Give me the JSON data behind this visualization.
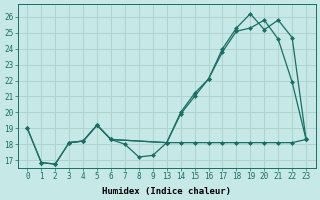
{
  "background_color": "#c6e8e6",
  "grid_color": "#afd4d0",
  "line_color": "#1a6e62",
  "xlabel": "Humidex (Indice chaleur)",
  "ylim": [
    16.5,
    26.8
  ],
  "yticks": [
    17,
    18,
    19,
    20,
    21,
    22,
    23,
    24,
    25,
    26
  ],
  "xtick_labels": [
    "0",
    "1",
    "2",
    "3",
    "4",
    "5",
    "6",
    "7",
    "8",
    "9",
    "13",
    "14",
    "15",
    "16",
    "17",
    "18",
    "19",
    "20",
    "21",
    "22",
    "23"
  ],
  "line1_pos": [
    0,
    1,
    2,
    3,
    4,
    5,
    6,
    7,
    8,
    9,
    10,
    11,
    12,
    13,
    14,
    15,
    16,
    17,
    18,
    19,
    20
  ],
  "line1_y": [
    19.0,
    16.85,
    16.75,
    18.1,
    18.2,
    19.2,
    18.3,
    18.0,
    17.2,
    17.3,
    18.1,
    20.0,
    21.2,
    22.1,
    24.0,
    25.3,
    26.2,
    25.2,
    25.8,
    24.7,
    18.3
  ],
  "line2_pos": [
    0,
    1,
    2,
    3,
    4,
    5,
    6,
    10,
    11,
    12,
    13,
    14,
    15,
    16,
    17,
    18,
    19,
    20
  ],
  "line2_y": [
    19.0,
    16.85,
    16.75,
    18.1,
    18.2,
    19.2,
    18.3,
    18.1,
    19.9,
    21.0,
    22.1,
    23.8,
    25.1,
    25.3,
    25.8,
    24.6,
    21.9,
    18.3
  ],
  "line3_pos": [
    3,
    4,
    5,
    6,
    10,
    11,
    12,
    13,
    14,
    15,
    16,
    17,
    18,
    19,
    20
  ],
  "line3_y": [
    18.1,
    18.2,
    19.2,
    18.3,
    18.1,
    18.1,
    18.1,
    18.1,
    18.1,
    18.1,
    18.1,
    18.1,
    18.1,
    18.1,
    18.3
  ]
}
